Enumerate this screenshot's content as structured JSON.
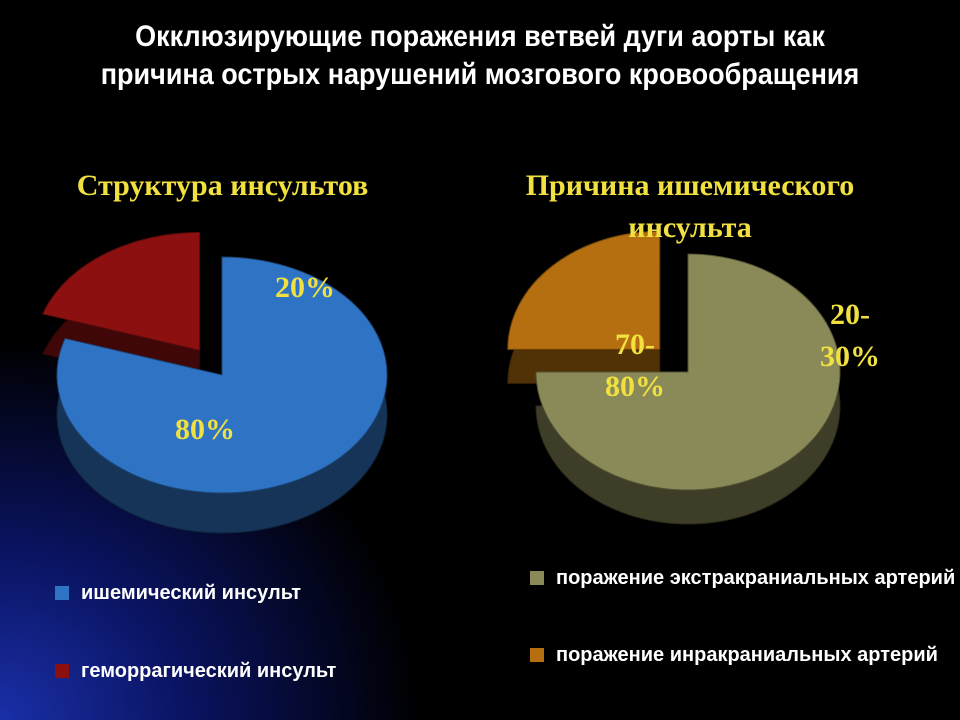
{
  "title": "Окклюзирующие поражения ветвей дуги аорты как причина острых нарушений мозгового кровообращения",
  "chart_data": [
    {
      "type": "pie",
      "title": "Структура инсультов",
      "categories": [
        "ишемический инсульт",
        "геморрагический инсульт"
      ],
      "values": [
        80,
        20
      ],
      "value_labels": [
        "80%",
        "20%"
      ],
      "colors": [
        "#2f74c4",
        "#8c1010"
      ]
    },
    {
      "type": "pie",
      "title": "Причина ишемического инсульта",
      "categories": [
        "поражение экстракраниальных артерий",
        "поражение инракраниальных артерий"
      ],
      "values": [
        75,
        25
      ],
      "value_labels": [
        "70-80%",
        "20-30%"
      ],
      "colors": [
        "#8a8a58",
        "#b56e10"
      ]
    }
  ]
}
